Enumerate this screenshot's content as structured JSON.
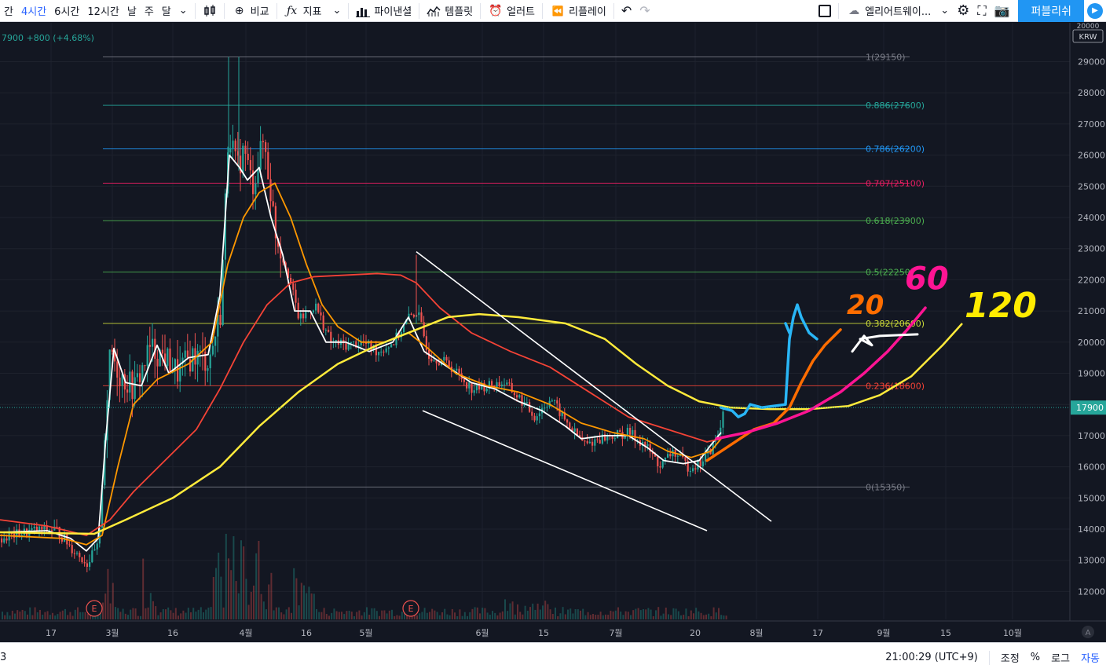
{
  "toolbar": {
    "intervals": [
      "간",
      "4시간",
      "6시간",
      "12시간",
      "날",
      "주",
      "달"
    ],
    "active_interval": "4시간",
    "compare": "비교",
    "indicators": "지표",
    "pine": "파이낸셜",
    "templates": "템플릿",
    "alert": "얼러트",
    "replay": "리플레이",
    "layout_name": "엘리어트웨이...",
    "publish": "퍼블리쉬"
  },
  "ticker_line": "7900 +800 (+4.68%)",
  "price_axis": {
    "currency": "KRW",
    "labels": [
      "29000",
      "28000",
      "27000",
      "26000",
      "25000",
      "24000",
      "23000",
      "22000",
      "21000",
      "20000",
      "19000",
      "18000",
      "17000",
      "16000",
      "15000",
      "14000",
      "13000",
      "12000"
    ],
    "last_price": "17900",
    "top_partial": "20000"
  },
  "time_axis": {
    "labels": [
      "17",
      "3월",
      "16",
      "4월",
      "16",
      "5월",
      "6월",
      "15",
      "7월",
      "20",
      "8월",
      "17",
      "9월",
      "15",
      "10월"
    ]
  },
  "fib_levels": [
    {
      "label": "1(29150)",
      "price": 29150,
      "color": "#787b86"
    },
    {
      "label": "0.886(27600)",
      "price": 27600,
      "color": "#26a69a"
    },
    {
      "label": "0.786(26200)",
      "price": 26200,
      "color": "#2196f3"
    },
    {
      "label": "0.707(25100)",
      "price": 25100,
      "color": "#e91e63"
    },
    {
      "label": "0.618(23900)",
      "price": 23900,
      "color": "#4caf50"
    },
    {
      "label": "0.5(22250)",
      "price": 22250,
      "color": "#4caf50"
    },
    {
      "label": "0.382(20600)",
      "price": 20600,
      "color": "#cddc39"
    },
    {
      "label": "0.236(18600)",
      "price": 18600,
      "color": "#f44336"
    },
    {
      "label": "0(15350)",
      "price": 15350,
      "color": "#787b86"
    }
  ],
  "earnings_marker": "E",
  "annotations": {
    "ma20": "20",
    "ma60": "60",
    "ma120": "120"
  },
  "colors": {
    "background": "#131722",
    "up": "#26a69a",
    "down": "#ef5350",
    "ma_white": "#ffffff",
    "ma_orange": "#ff9800",
    "ma_red": "#f44336",
    "ma_yellow": "#ffeb3b",
    "pen_blue": "#29b6f6",
    "pen_orange": "#ff6d00",
    "pen_pink": "#ff1493",
    "pen_yellow": "#ffeb00"
  },
  "bottom": {
    "left": "3",
    "time": "21:00:29 (UTC+9)",
    "adjust": "조정",
    "percent": "%",
    "log": "로그",
    "auto": "자동"
  }
}
